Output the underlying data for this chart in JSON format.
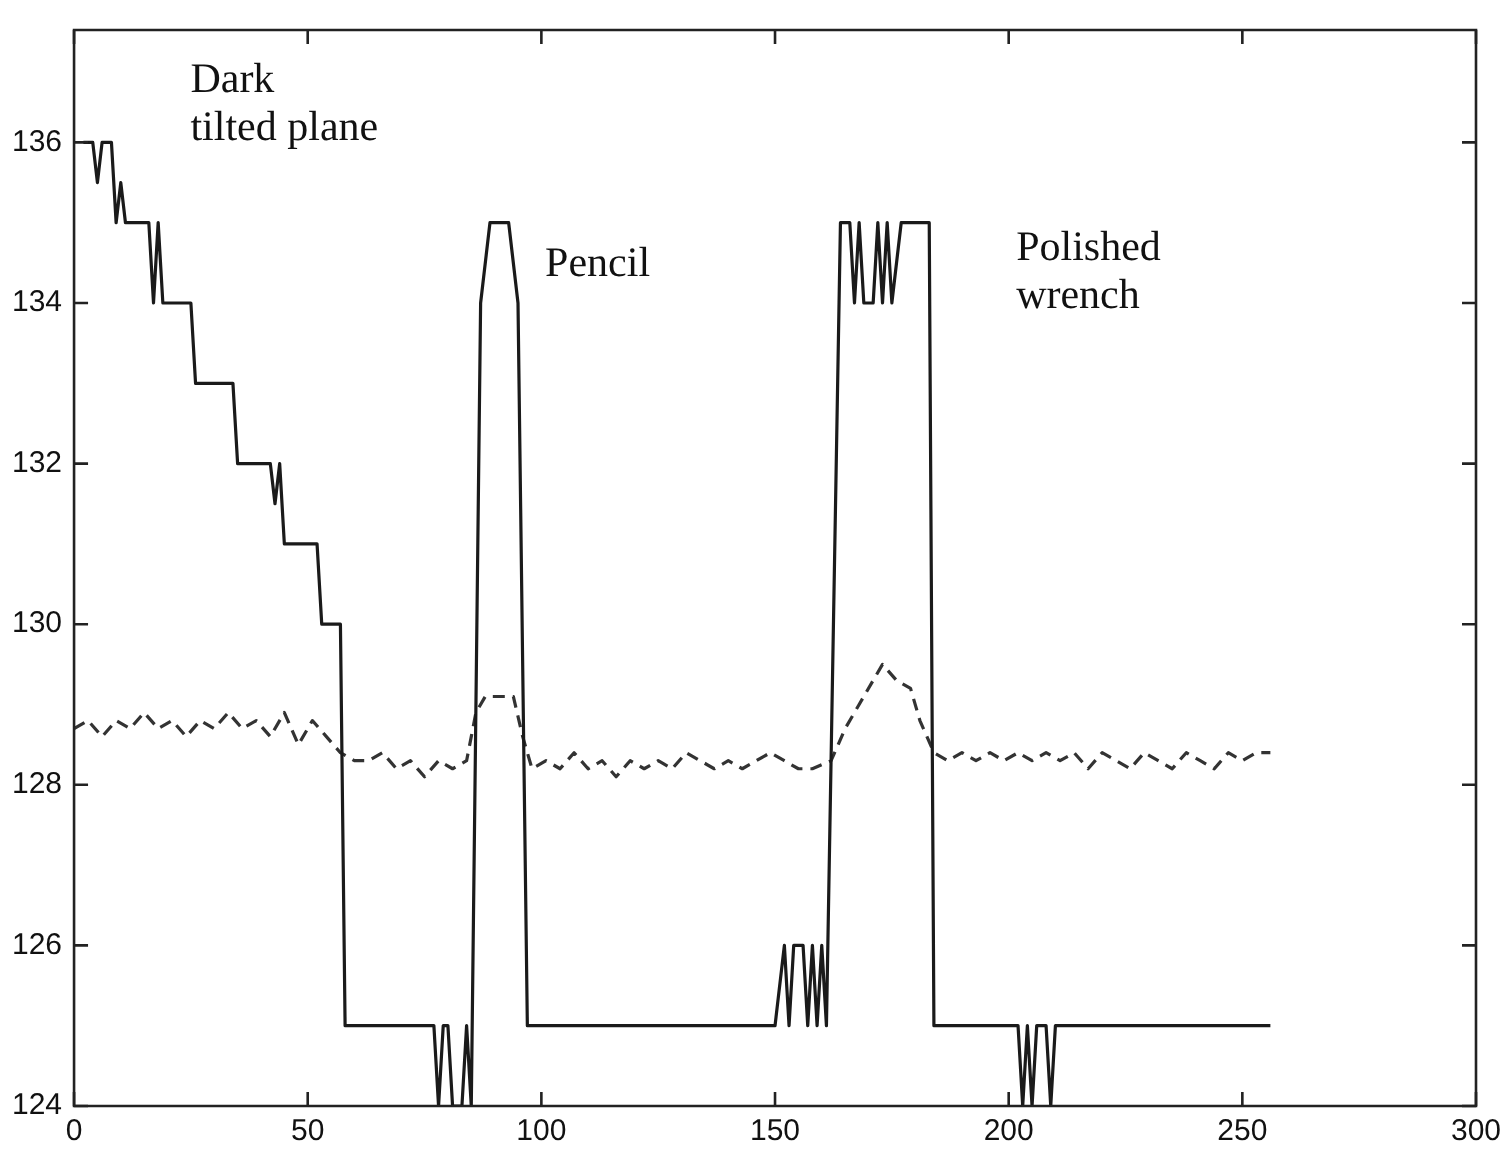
{
  "chart_data": {
    "type": "line",
    "xlim": [
      0,
      300
    ],
    "ylim": [
      124,
      137.4
    ],
    "xticks": [
      0,
      50,
      100,
      150,
      200,
      250,
      300
    ],
    "yticks": [
      124,
      126,
      128,
      130,
      132,
      134,
      136
    ],
    "grid": false,
    "legend": false,
    "marker": "none",
    "series": [
      {
        "color": "#1a1a1a",
        "line_style": "solid",
        "x": [
          2,
          4,
          5,
          6,
          8,
          9,
          10,
          11,
          16,
          17,
          18,
          19,
          25,
          26,
          34,
          35,
          42,
          43,
          44,
          45,
          52,
          53,
          57,
          58,
          77,
          78,
          79,
          80,
          81,
          83,
          84,
          85,
          87,
          89,
          93,
          95,
          97,
          150,
          152,
          153,
          154,
          156,
          157,
          158,
          159,
          160,
          161,
          164,
          166,
          167,
          168,
          169,
          171,
          172,
          173,
          174,
          175,
          177,
          183,
          184,
          202,
          203,
          204,
          205,
          206,
          208,
          209,
          210,
          256
        ],
        "values": [
          136,
          136,
          135.5,
          136,
          136,
          135,
          135.5,
          135,
          135,
          134,
          135,
          134,
          134,
          133,
          133,
          132,
          132,
          131.5,
          132,
          131,
          131,
          130,
          130,
          125,
          125,
          124,
          125,
          125,
          124,
          124,
          125,
          124,
          134,
          135,
          135,
          134,
          125,
          125,
          126,
          125,
          126,
          126,
          125,
          126,
          125,
          126,
          125,
          135,
          135,
          134,
          135,
          134,
          134,
          135,
          134,
          135,
          134,
          135,
          135,
          125,
          125,
          124,
          125,
          124,
          125,
          125,
          124,
          125,
          125
        ]
      },
      {
        "color": "#333333",
        "line_style": "dashed",
        "x": [
          0,
          3,
          6,
          9,
          12,
          15,
          18,
          21,
          24,
          27,
          30,
          33,
          36,
          39,
          42,
          45,
          48,
          51,
          54,
          57,
          60,
          63,
          66,
          69,
          72,
          75,
          78,
          81,
          84,
          86,
          88,
          91,
          94,
          96,
          98,
          101,
          104,
          107,
          110,
          113,
          116,
          119,
          122,
          125,
          128,
          131,
          134,
          137,
          140,
          143,
          146,
          149,
          152,
          155,
          158,
          162,
          165,
          168,
          171,
          173,
          176,
          179,
          181,
          184,
          187,
          190,
          193,
          196,
          199,
          202,
          205,
          208,
          211,
          214,
          217,
          220,
          223,
          226,
          229,
          232,
          235,
          238,
          241,
          244,
          247,
          250,
          253,
          256
        ],
        "values": [
          128.7,
          128.8,
          128.6,
          128.8,
          128.7,
          128.9,
          128.7,
          128.8,
          128.6,
          128.8,
          128.7,
          128.9,
          128.7,
          128.8,
          128.6,
          128.9,
          128.5,
          128.8,
          128.6,
          128.4,
          128.3,
          128.3,
          128.4,
          128.2,
          128.3,
          128.1,
          128.3,
          128.2,
          128.3,
          128.9,
          129.1,
          129.1,
          129.1,
          128.6,
          128.2,
          128.3,
          128.2,
          128.4,
          128.2,
          128.3,
          128.1,
          128.3,
          128.2,
          128.3,
          128.2,
          128.4,
          128.3,
          128.2,
          128.3,
          128.2,
          128.3,
          128.4,
          128.3,
          128.2,
          128.2,
          128.3,
          128.7,
          129.0,
          129.3,
          129.5,
          129.3,
          129.2,
          128.8,
          128.4,
          128.3,
          128.4,
          128.3,
          128.4,
          128.3,
          128.4,
          128.3,
          128.4,
          128.3,
          128.4,
          128.2,
          128.4,
          128.3,
          128.2,
          128.4,
          128.3,
          128.2,
          128.4,
          128.3,
          128.2,
          128.4,
          128.3,
          128.4,
          128.4
        ]
      }
    ],
    "annotations": [
      "Dark\ntilted plane",
      "Pencil",
      "Polished\nwrench"
    ]
  }
}
